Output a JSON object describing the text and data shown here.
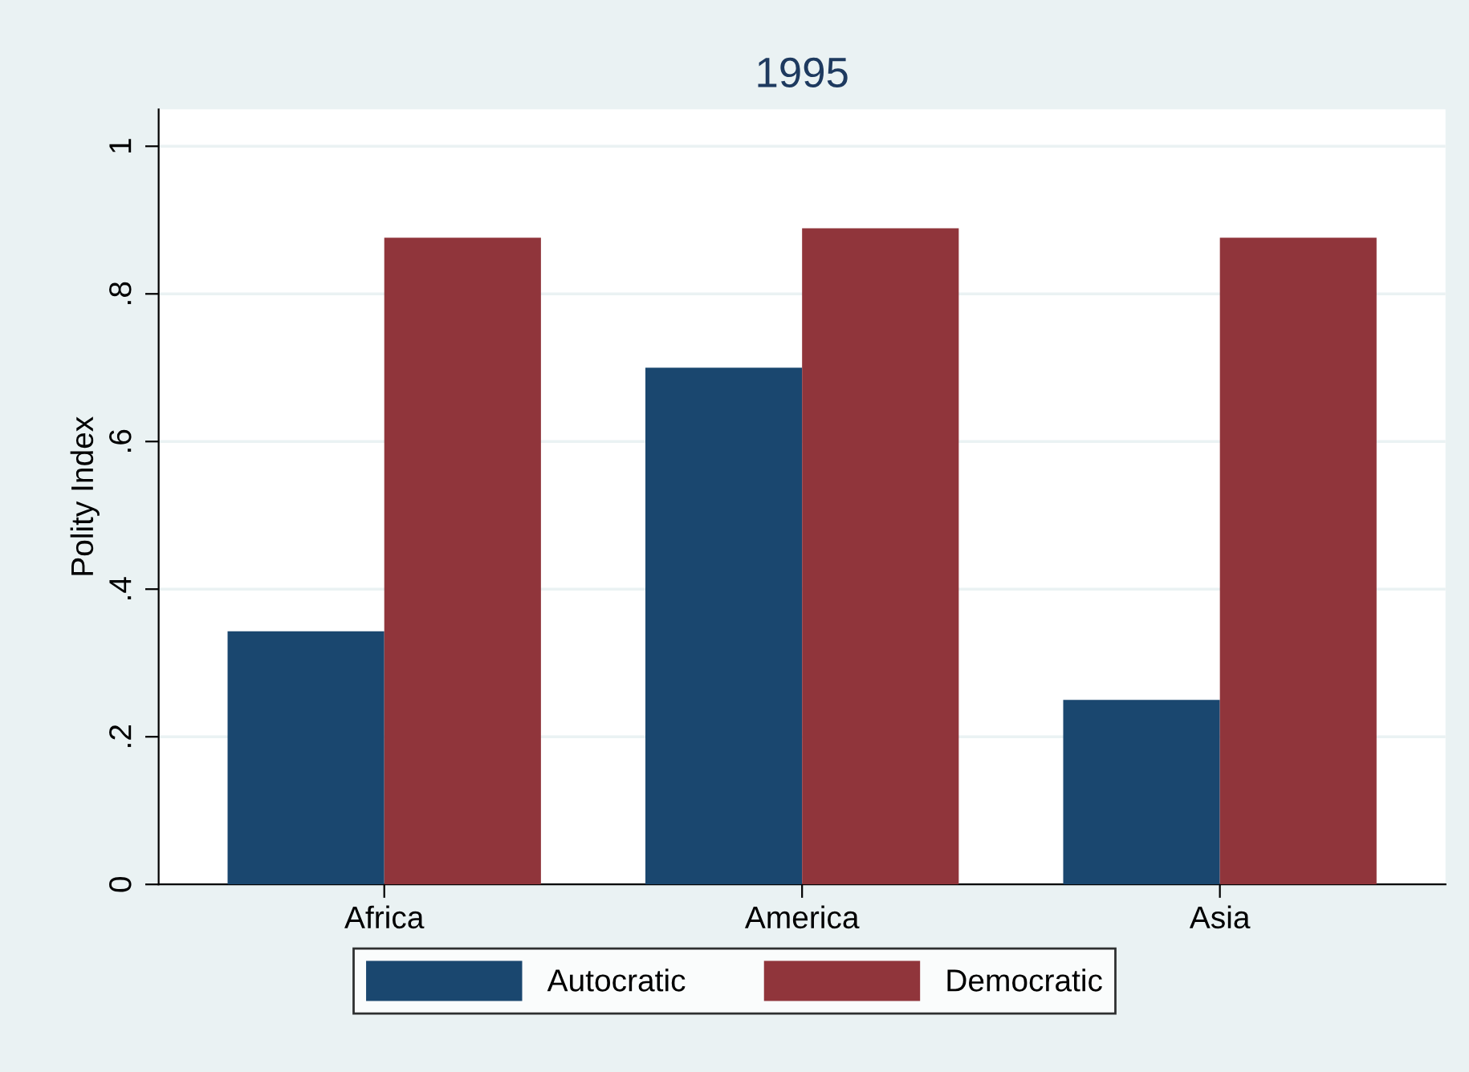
{
  "chart_data": {
    "type": "bar",
    "title": "1995",
    "ylabel": "Polity Index",
    "categories": [
      "Africa",
      "America",
      "Asia"
    ],
    "series": [
      {
        "name": "Autocratic",
        "color": "#1a476f",
        "values": [
          0.343,
          0.7,
          0.25
        ]
      },
      {
        "name": "Democratic",
        "color": "#90353b",
        "values": [
          0.876,
          0.889,
          0.876
        ]
      }
    ],
    "ylim": [
      0,
      1.05
    ],
    "yticks": [
      0,
      {
        "value": 0.2,
        "label": ".2"
      },
      {
        "value": 0.4,
        "label": ".4"
      },
      {
        "value": 0.6,
        "label": ".6"
      },
      {
        "value": 0.8,
        "label": ".8"
      },
      1
    ],
    "grid": "y",
    "legend": "bottom"
  }
}
